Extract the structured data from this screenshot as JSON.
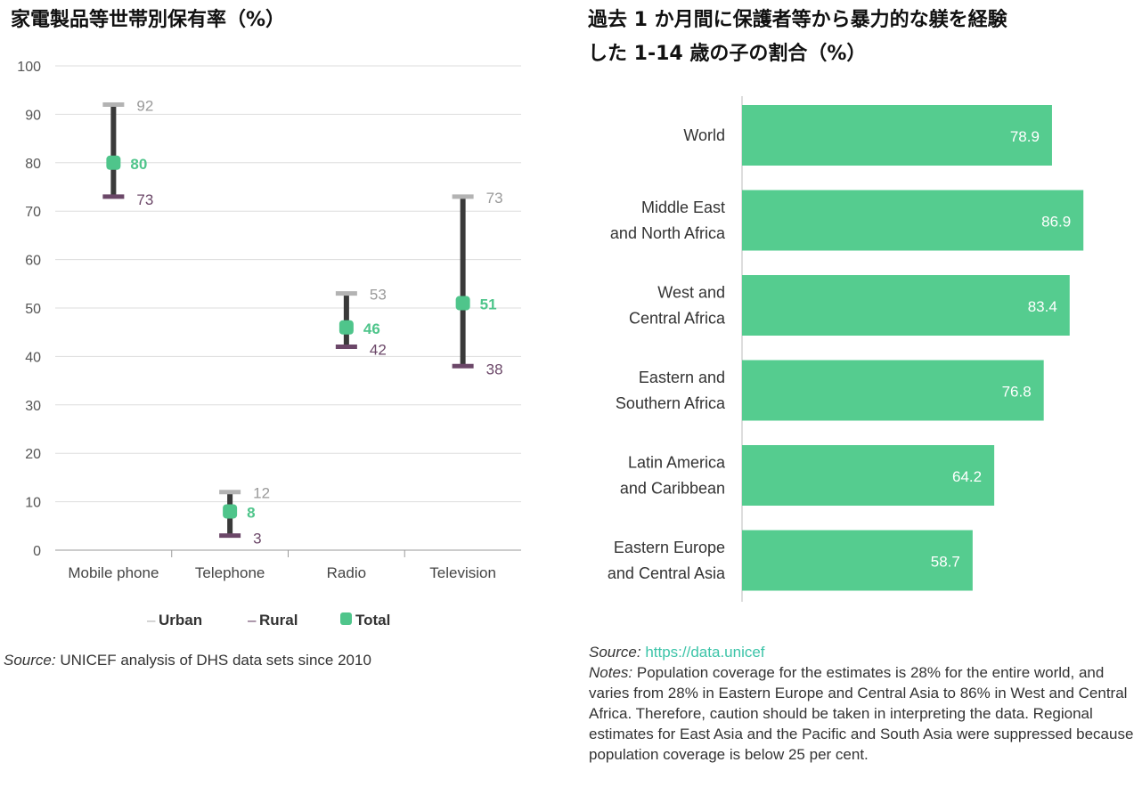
{
  "left_title": "家電製品等世帯別保有率（%）",
  "right_title_line1": "過去 1 か月間に保護者等から暴力的な躾を経験",
  "right_title_line2": "した 1-14 歳の子の割合（%）",
  "left_source_label": "Source:",
  "left_source_text": " UNICEF analysis of DHS data sets since 2010",
  "right_source_label": "Source:",
  "right_source_link": "https://data.unicef",
  "right_notes_label": "Notes:",
  "right_notes_text": " Population coverage for the estimates is 28% for the entire world, and varies from 28% in Eastern Europe and Central Asia to 86% in West and Central Africa. Therefore, caution should be taken in interpreting the data. Regional estimates for East Asia and the Pacific and South Asia were suppressed because population coverage is below 25 per cent.",
  "colors": {
    "urban": "#b3b3b3",
    "rural": "#6b4768",
    "total": "#4fc58b",
    "range_line": "#3a3a3a",
    "bar": "#55cc8f",
    "grid": "#dddddd"
  },
  "chart_data": [
    {
      "type": "scatter",
      "subtype": "range-dot",
      "title": "家電製品等世帯別保有率（%）",
      "categories": [
        "Mobile phone",
        "Telephone",
        "Radio",
        "Television"
      ],
      "series": [
        {
          "name": "Urban",
          "values": [
            92,
            12,
            53,
            73
          ]
        },
        {
          "name": "Rural",
          "values": [
            73,
            3,
            42,
            38
          ]
        },
        {
          "name": "Total",
          "values": [
            80,
            8,
            46,
            51
          ]
        }
      ],
      "ylim": [
        0,
        100
      ],
      "yticks": [
        0,
        10,
        20,
        30,
        40,
        50,
        60,
        70,
        80,
        90,
        100
      ],
      "grid": true,
      "legend_position": "bottom",
      "legend": [
        {
          "prefix": "–",
          "label": "Urban"
        },
        {
          "prefix": "–",
          "label": "Rural"
        },
        {
          "prefix": "■",
          "label": "Total"
        }
      ]
    },
    {
      "type": "bar",
      "orientation": "horizontal",
      "title": "過去 1 か月間に保護者等から暴力的な躾を経験した 1-14 歳の子の割合（%）",
      "categories": [
        [
          "World"
        ],
        [
          "Middle East",
          "and North Africa"
        ],
        [
          "West and",
          "Central Africa"
        ],
        [
          "Eastern and",
          "Southern Africa"
        ],
        [
          "Latin America",
          "and Caribbean"
        ],
        [
          "Eastern Europe",
          "and Central Asia"
        ]
      ],
      "values": [
        78.9,
        86.9,
        83.4,
        76.8,
        64.2,
        58.7
      ],
      "value_labels": [
        "78.9",
        "86.9",
        "83.4",
        "76.8",
        "64.2",
        "58.7"
      ],
      "grid": false
    }
  ]
}
